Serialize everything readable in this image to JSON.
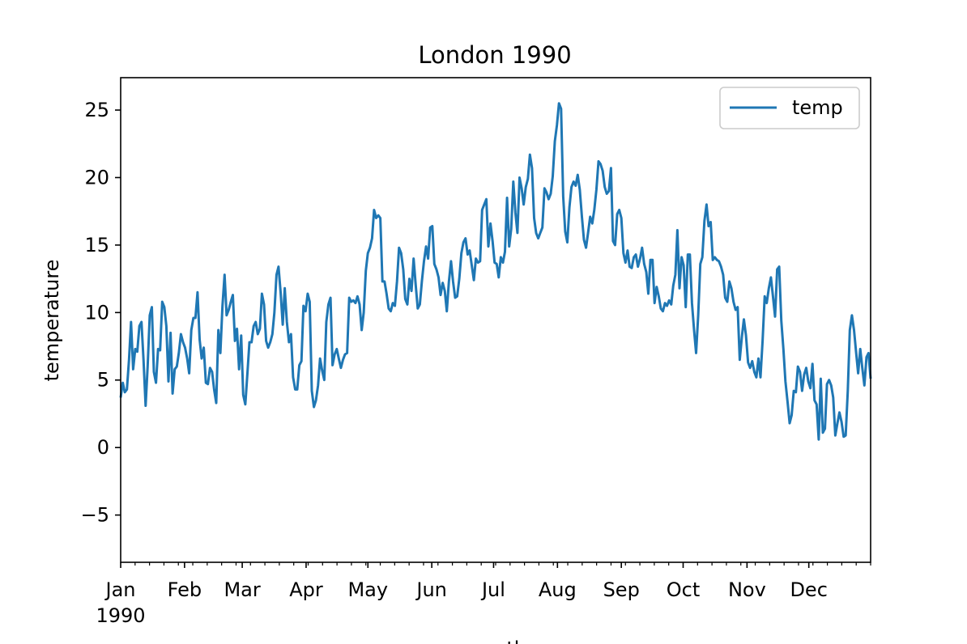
{
  "chart_data": {
    "type": "line",
    "title": "London 1990",
    "xlabel": "month",
    "ylabel": "temperature",
    "x_unit": "day of year 1990",
    "x_ticks": [
      {
        "day": 0,
        "label": "Jan",
        "sublabel": "1990"
      },
      {
        "day": 31,
        "label": "Feb"
      },
      {
        "day": 59,
        "label": "Mar"
      },
      {
        "day": 90,
        "label": "Apr"
      },
      {
        "day": 120,
        "label": "May"
      },
      {
        "day": 151,
        "label": "Jun"
      },
      {
        "day": 181,
        "label": "Jul"
      },
      {
        "day": 212,
        "label": "Aug"
      },
      {
        "day": 243,
        "label": "Sep"
      },
      {
        "day": 273,
        "label": "Oct"
      },
      {
        "day": 304,
        "label": "Nov"
      },
      {
        "day": 334,
        "label": "Dec"
      }
    ],
    "xlim": [
      "1990-01-01",
      "1990-12-31"
    ],
    "ylim": [
      -8.5,
      27.4
    ],
    "y_ticks": [
      -5,
      0,
      5,
      10,
      15,
      20,
      25
    ],
    "y_tick_labels": [
      "−5",
      "0",
      "5",
      "10",
      "15",
      "20",
      "25"
    ],
    "grid": false,
    "legend_position": "top-right",
    "color": "#1f77b4",
    "series": [
      {
        "name": "temp",
        "values": [
          3.7,
          4.8,
          4.1,
          4.3,
          6.5,
          9.3,
          5.8,
          7.3,
          7.1,
          9.0,
          9.3,
          6.5,
          3.1,
          6.0,
          9.8,
          10.4,
          5.6,
          4.8,
          7.3,
          7.2,
          10.8,
          10.4,
          9.0,
          4.9,
          8.5,
          4.0,
          5.8,
          6.0,
          7.0,
          8.4,
          7.8,
          7.4,
          6.6,
          5.5,
          8.7,
          9.6,
          9.6,
          11.5,
          8.0,
          6.6,
          7.4,
          4.8,
          4.7,
          5.9,
          5.6,
          4.3,
          3.3,
          8.7,
          7.0,
          10.5,
          12.8,
          9.8,
          10.2,
          10.8,
          11.3,
          7.9,
          8.8,
          5.8,
          8.3,
          3.9,
          3.2,
          5.5,
          7.8,
          7.8,
          9.0,
          9.3,
          8.4,
          8.8,
          11.4,
          10.6,
          7.9,
          7.4,
          7.8,
          8.4,
          10.0,
          12.8,
          13.4,
          11.5,
          9.1,
          11.8,
          9.3,
          7.8,
          8.4,
          5.2,
          4.3,
          4.3,
          6.1,
          6.4,
          10.5,
          10.1,
          11.4,
          10.8,
          4.2,
          3.0,
          3.5,
          4.6,
          6.6,
          5.7,
          5.0,
          9.3,
          10.6,
          11.1,
          6.1,
          6.9,
          7.3,
          6.6,
          5.9,
          6.5,
          6.9,
          7.0,
          11.1,
          10.8,
          10.9,
          10.7,
          11.2,
          10.6,
          8.7,
          10.0,
          13.1,
          14.4,
          14.8,
          15.5,
          17.6,
          17.0,
          17.2,
          17.0,
          12.3,
          12.3,
          11.4,
          10.3,
          10.1,
          10.7,
          10.5,
          12.3,
          14.8,
          14.4,
          13.2,
          11.0,
          10.6,
          12.5,
          11.6,
          14.0,
          12.1,
          10.3,
          10.6,
          12.3,
          13.8,
          14.9,
          14.0,
          16.3,
          16.4,
          13.6,
          13.2,
          12.6,
          11.3,
          12.2,
          11.6,
          10.1,
          12.3,
          13.8,
          12.3,
          11.1,
          11.2,
          12.5,
          14.4,
          15.2,
          15.5,
          14.3,
          14.6,
          13.5,
          12.4,
          14.0,
          13.7,
          13.8,
          17.6,
          18.0,
          18.4,
          14.9,
          16.6,
          15.3,
          13.7,
          13.6,
          12.6,
          14.1,
          13.7,
          14.5,
          18.5,
          14.9,
          16.2,
          19.7,
          17.4,
          15.9,
          20.0,
          19.2,
          18.0,
          19.3,
          19.9,
          21.7,
          20.7,
          17.0,
          15.9,
          15.5,
          15.9,
          16.3,
          19.2,
          18.9,
          18.4,
          18.8,
          20.1,
          22.7,
          23.9,
          25.5,
          25.1,
          18.6,
          16.0,
          15.2,
          17.8,
          19.3,
          19.7,
          19.4,
          20.2,
          19.1,
          17.1,
          15.4,
          14.8,
          15.9,
          17.1,
          16.6,
          17.6,
          19.1,
          21.2,
          21.0,
          20.5,
          19.3,
          18.8,
          19.0,
          20.7,
          15.3,
          15.0,
          17.3,
          17.6,
          17.0,
          14.4,
          13.7,
          14.6,
          13.4,
          13.3,
          14.1,
          14.3,
          13.4,
          14.0,
          14.8,
          13.6,
          13.0,
          11.4,
          13.9,
          13.9,
          10.7,
          11.9,
          11.2,
          10.3,
          10.1,
          10.7,
          10.5,
          10.9,
          10.6,
          12.0,
          12.8,
          16.1,
          11.8,
          14.1,
          13.5,
          10.4,
          14.3,
          14.3,
          10.7,
          8.7,
          7.0,
          9.8,
          13.6,
          14.1,
          16.8,
          18.0,
          16.4,
          16.7,
          13.9,
          14.1,
          13.9,
          13.8,
          13.4,
          12.8,
          11.1,
          10.8,
          12.3,
          11.8,
          10.8,
          10.2,
          10.4,
          6.5,
          8.2,
          9.5,
          8.3,
          6.3,
          5.9,
          6.4,
          5.6,
          5.2,
          6.6,
          5.2,
          7.9,
          11.2,
          10.7,
          11.8,
          12.6,
          11.2,
          9.7,
          13.2,
          13.4,
          9.4,
          7.3,
          4.9,
          3.4,
          1.8,
          2.4,
          4.2,
          4.1,
          6.0,
          5.6,
          4.2,
          5.4,
          5.9,
          4.9,
          4.4,
          6.2,
          3.5,
          3.2,
          0.6,
          5.1,
          1.1,
          1.4,
          4.7,
          5.0,
          4.6,
          3.7,
          0.9,
          1.8,
          2.6,
          1.9,
          0.8,
          0.9,
          4.2,
          8.7,
          9.8,
          8.7,
          7.1,
          5.5,
          7.3,
          5.9,
          4.6,
          6.7,
          7.0,
          5.1
        ]
      }
    ]
  }
}
